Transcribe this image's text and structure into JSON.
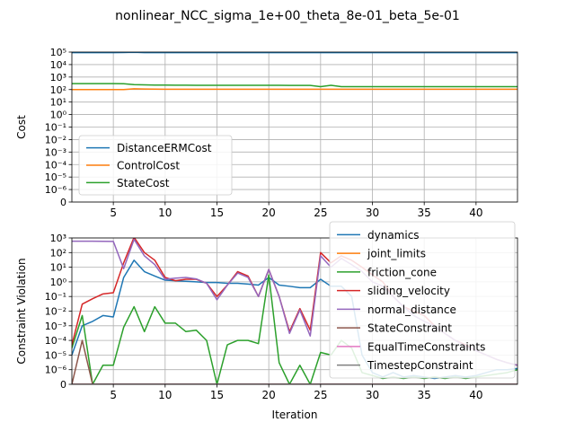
{
  "chart_data": [
    {
      "type": "line",
      "title": "nonlinear_NCC_sigma_1e+00_theta_8e-01_beta_5e-01",
      "ylabel": "Cost",
      "xlabel": "",
      "yscale": "symlog",
      "xlim": [
        1,
        44
      ],
      "ylim": [
        0,
        100000
      ],
      "grid": true,
      "legend_position": "lower-left",
      "xticks": [
        5,
        10,
        15,
        20,
        25,
        30,
        35,
        40
      ],
      "yticks": [
        {
          "value": 0,
          "label": "0"
        },
        {
          "value": 1e-06,
          "label": "10⁻⁶"
        },
        {
          "value": 1e-05,
          "label": "10⁻⁵"
        },
        {
          "value": 0.0001,
          "label": "10⁻⁴"
        },
        {
          "value": 0.001,
          "label": "10⁻³"
        },
        {
          "value": 0.01,
          "label": "10⁻²"
        },
        {
          "value": 0.1,
          "label": "10⁻¹"
        },
        {
          "value": 1,
          "label": "10⁰"
        },
        {
          "value": 10,
          "label": "10¹"
        },
        {
          "value": 100,
          "label": "10²"
        },
        {
          "value": 1000,
          "label": "10³"
        },
        {
          "value": 10000,
          "label": "10⁴"
        },
        {
          "value": 100000,
          "label": "10⁵"
        }
      ],
      "x": [
        1,
        2,
        3,
        4,
        5,
        6,
        7,
        8,
        9,
        10,
        11,
        12,
        13,
        14,
        15,
        16,
        17,
        18,
        19,
        20,
        21,
        22,
        23,
        24,
        25,
        26,
        27,
        28,
        29,
        30,
        31,
        32,
        33,
        34,
        35,
        36,
        37,
        38,
        39,
        40,
        41,
        42,
        43,
        44
      ],
      "series": [
        {
          "name": "DistanceERMCost",
          "color": "#1f77b4",
          "values": [
            90000,
            90000,
            90000,
            90000,
            90000,
            92000,
            96000,
            91000,
            90000,
            90000,
            90000,
            90000,
            90000,
            90000,
            90000,
            90000,
            90000,
            90000,
            90000,
            93000,
            90000,
            90000,
            90000,
            90000,
            90000,
            90000,
            90000,
            90000,
            90000,
            90000,
            90000,
            90000,
            90000,
            90000,
            90000,
            90000,
            90000,
            90000,
            90000,
            90000,
            90000,
            90000,
            90000,
            90000
          ]
        },
        {
          "name": "ControlCost",
          "color": "#ff7f0e",
          "values": [
            100,
            100,
            100,
            100,
            100,
            100,
            115,
            110,
            108,
            107,
            106,
            106,
            106,
            106,
            106,
            106,
            106,
            106,
            106,
            106,
            106,
            106,
            106,
            106,
            106,
            106,
            106,
            106,
            106,
            106,
            106,
            106,
            106,
            106,
            106,
            106,
            106,
            106,
            106,
            106,
            106,
            106,
            106,
            106
          ]
        },
        {
          "name": "StateCost",
          "color": "#2ca02c",
          "values": [
            300,
            300,
            300,
            300,
            300,
            290,
            250,
            240,
            230,
            230,
            225,
            222,
            220,
            220,
            220,
            220,
            220,
            220,
            220,
            220,
            220,
            215,
            215,
            215,
            170,
            220,
            170,
            170,
            170,
            170,
            170,
            170,
            170,
            170,
            170,
            170,
            170,
            170,
            170,
            170,
            170,
            170,
            170,
            170
          ]
        }
      ]
    },
    {
      "type": "line",
      "title": "",
      "ylabel": "Constraint Violation",
      "xlabel": "Iteration",
      "yscale": "symlog",
      "xlim": [
        1,
        44
      ],
      "ylim": [
        0,
        1000
      ],
      "grid": true,
      "legend_position": "right",
      "xticks": [
        5,
        10,
        15,
        20,
        25,
        30,
        35,
        40
      ],
      "yticks": [
        {
          "value": 0,
          "label": "0"
        },
        {
          "value": 1e-06,
          "label": "10⁻⁶"
        },
        {
          "value": 1e-05,
          "label": "10⁻⁵"
        },
        {
          "value": 0.0001,
          "label": "10⁻⁴"
        },
        {
          "value": 0.001,
          "label": "10⁻³"
        },
        {
          "value": 0.01,
          "label": "10⁻²"
        },
        {
          "value": 0.1,
          "label": "10⁻¹"
        },
        {
          "value": 1,
          "label": "10⁰"
        },
        {
          "value": 10,
          "label": "10¹"
        },
        {
          "value": 100,
          "label": "10²"
        },
        {
          "value": 1000,
          "label": "10³"
        }
      ],
      "x": [
        1,
        2,
        3,
        4,
        5,
        6,
        7,
        8,
        9,
        10,
        11,
        12,
        13,
        14,
        15,
        16,
        17,
        18,
        19,
        20,
        21,
        22,
        23,
        24,
        25,
        26,
        27,
        28,
        29,
        30,
        31,
        32,
        33,
        34,
        35,
        36,
        37,
        38,
        39,
        40,
        41,
        42,
        43,
        44
      ],
      "series": [
        {
          "name": "dynamics",
          "color": "#1f77b4",
          "values": [
            1e-05,
            0.001,
            0.002,
            0.005,
            0.004,
            2,
            30,
            5,
            2.5,
            1.3,
            1.2,
            1.1,
            1.0,
            0.9,
            0.9,
            0.8,
            0.8,
            0.7,
            0.6,
            2,
            0.6,
            0.5,
            0.4,
            0.4,
            1.5,
            0.5,
            0.5,
            0.1,
            1e-05,
            8e-07,
            5e-07,
            8e-07,
            5e-07,
            6e-07,
            5e-07,
            4e-07,
            5e-07,
            6e-07,
            5e-07,
            6e-07,
            8e-07,
            1e-06,
            1e-06,
            1.2e-06
          ]
        },
        {
          "name": "joint_limits",
          "color": "#ff7f0e",
          "values": [
            0,
            0,
            0,
            0,
            0,
            0,
            0,
            0,
            0,
            0,
            0,
            0,
            0,
            0,
            0,
            0,
            0,
            0,
            0,
            0,
            0,
            0,
            0,
            0,
            0,
            0,
            0,
            0,
            0,
            0,
            0,
            0,
            0,
            0,
            0,
            0,
            0,
            0,
            0,
            0,
            0,
            0,
            0,
            0
          ]
        },
        {
          "name": "friction_cone",
          "color": "#2ca02c",
          "values": [
            3e-05,
            0.005,
            0,
            2e-06,
            2e-06,
            0.0008,
            0.02,
            0.0004,
            0.02,
            0.0015,
            0.0015,
            0.0004,
            0.0005,
            0.0001,
            0,
            5e-05,
            0.0001,
            0.0001,
            6e-05,
            3,
            3e-06,
            0,
            2e-06,
            0,
            1.5e-05,
            1e-05,
            0.0001,
            3e-05,
            8e-07,
            6e-07,
            4e-07,
            5e-07,
            4e-07,
            5e-07,
            4e-07,
            5e-07,
            4e-07,
            5e-07,
            4e-07,
            5e-07,
            6e-07,
            7e-07,
            8e-07,
            1e-06
          ]
        },
        {
          "name": "sliding_velocity",
          "color": "#d62728",
          "values": [
            5e-05,
            0.03,
            0.07,
            0.15,
            0.18,
            20,
            1100,
            100,
            30,
            2,
            1.2,
            1.5,
            1.5,
            0.8,
            0.1,
            0.6,
            5,
            2.5,
            0.1,
            7,
            0.1,
            0.0004,
            0.015,
            0.0005,
            100,
            20,
            60,
            30,
            10,
            3,
            1,
            0.1,
            0.02,
            0.01,
            0.005,
            0.001,
            0.0003,
            0.0001,
            5e-05,
            2e-05,
            1e-05,
            5e-06,
            3e-06,
            2e-06
          ]
        },
        {
          "name": "normal_distance",
          "color": "#9467bd",
          "values": [
            600,
            600,
            600,
            590,
            580,
            8,
            800,
            60,
            15,
            1.5,
            1.8,
            2,
            1.6,
            0.8,
            0.06,
            0.6,
            4,
            2,
            0.1,
            7,
            0.1,
            0.0003,
            0.012,
            0.0002,
            60,
            10,
            40,
            15,
            5,
            1,
            0.5,
            0.1,
            0.02,
            0.005,
            0.002,
            0.001,
            0.0003,
            0.0001,
            4e-05,
            2e-05,
            1e-05,
            5e-06,
            3e-06,
            2e-06
          ]
        },
        {
          "name": "StateConstraint",
          "color": "#8c564b",
          "values": [
            0,
            0.0001,
            0,
            0,
            0,
            0,
            0,
            0,
            0,
            0,
            0,
            0,
            0,
            0,
            0,
            0,
            0,
            0,
            0,
            0,
            0,
            0,
            0,
            0,
            0,
            0,
            0,
            0,
            0,
            0,
            0,
            0,
            0,
            0,
            0,
            0,
            0,
            0,
            0,
            0,
            0,
            0,
            0,
            0
          ]
        },
        {
          "name": "EqualTimeConstraints",
          "color": "#e377c2",
          "values": [
            0,
            0,
            0,
            0,
            0,
            0,
            0,
            0,
            0,
            0,
            0,
            0,
            0,
            0,
            0,
            0,
            0,
            0,
            0,
            0,
            0,
            0,
            0,
            0,
            0,
            0,
            0,
            0,
            0,
            0,
            0,
            0,
            0,
            0,
            0,
            0,
            0,
            0,
            0,
            0,
            0,
            0,
            0,
            0
          ]
        },
        {
          "name": "TimestepConstraint",
          "color": "#7f7f7f",
          "values": [
            0,
            0,
            0,
            0,
            0,
            0,
            0,
            0,
            0,
            0,
            0,
            0,
            0,
            0,
            0,
            0,
            0,
            0,
            0,
            0,
            0,
            0,
            0,
            0,
            0,
            0,
            0,
            0,
            0,
            0,
            0,
            0,
            0,
            0,
            0,
            0,
            0,
            0,
            0,
            0,
            0,
            0,
            0,
            0
          ]
        }
      ]
    }
  ]
}
